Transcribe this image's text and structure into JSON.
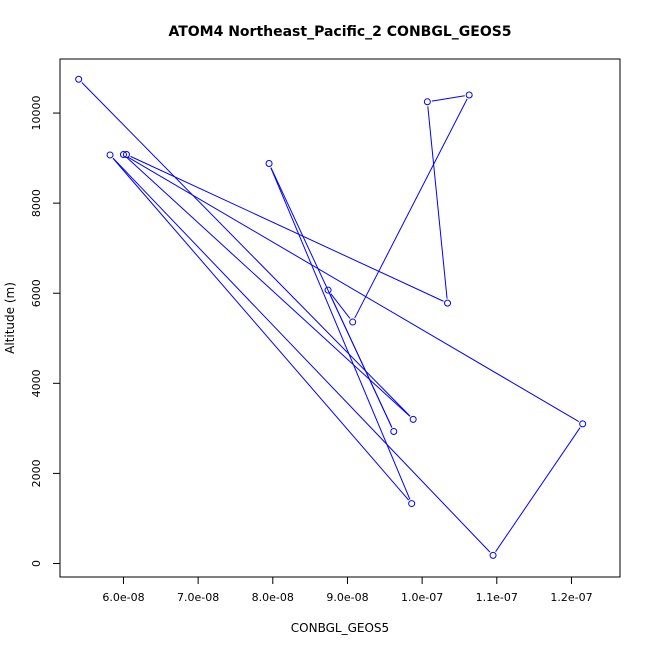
{
  "chart_data": {
    "type": "line",
    "title": "ATOM4 Northeast_Pacific_2 CONBGL_GEOS5",
    "xlabel": "CONBGL_GEOS5",
    "ylabel": "Altitude (m)",
    "xlim": [
      5.15e-08,
      1.265e-07
    ],
    "ylim": [
      -300,
      11200
    ],
    "x_ticks": [
      {
        "value": 6e-08,
        "label": "6.0e-08"
      },
      {
        "value": 7e-08,
        "label": "7.0e-08"
      },
      {
        "value": 8e-08,
        "label": "8.0e-08"
      },
      {
        "value": 9e-08,
        "label": "9.0e-08"
      },
      {
        "value": 1e-07,
        "label": "1.0e-07"
      },
      {
        "value": 1.1e-07,
        "label": "1.1e-07"
      },
      {
        "value": 1.2e-07,
        "label": "1.2e-07"
      }
    ],
    "y_ticks": [
      {
        "value": 0,
        "label": "0"
      },
      {
        "value": 2000,
        "label": "2000"
      },
      {
        "value": 4000,
        "label": "4000"
      },
      {
        "value": 6000,
        "label": "6000"
      },
      {
        "value": 8000,
        "label": "8000"
      },
      {
        "value": 10000,
        "label": "10000"
      }
    ],
    "series_color": "#0000ff",
    "series": [
      {
        "x": [
          5.4e-08,
          9.88e-08,
          6e-08,
          1.215e-07,
          1.095e-07,
          5.82e-08,
          9.86e-08,
          7.95e-08,
          9.62e-08,
          8.74e-08,
          9.07e-08,
          1.063e-07,
          1.007e-07,
          1.034e-07,
          6.04e-08
        ],
        "y": [
          10750,
          3200,
          9080,
          3100,
          180,
          9070,
          1330,
          8880,
          2930,
          6070,
          5360,
          10400,
          10250,
          5780,
          9080
        ]
      }
    ]
  }
}
